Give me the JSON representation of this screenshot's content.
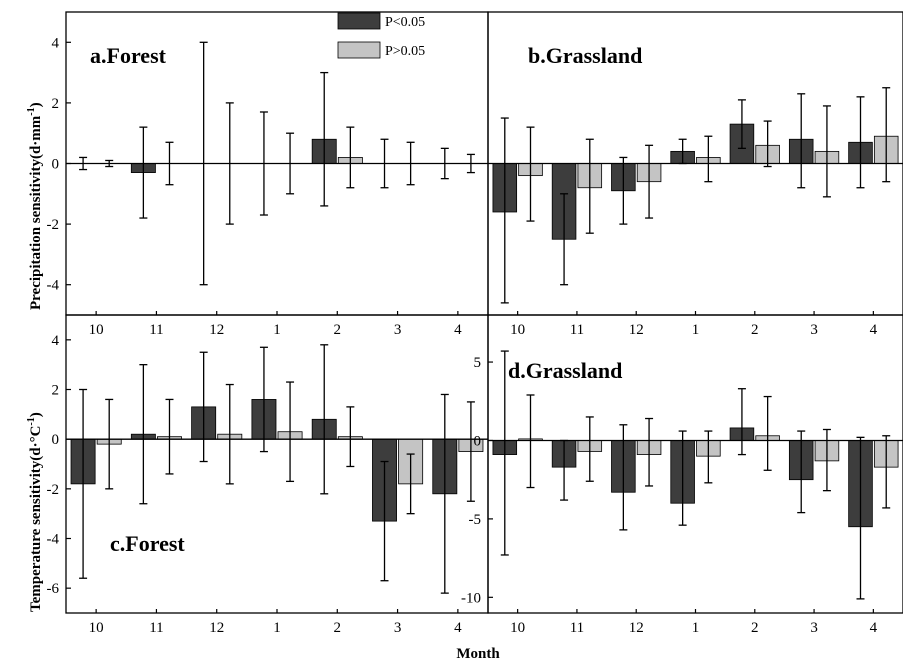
{
  "colors": {
    "sig": "#3d3d3d",
    "nonsig": "#c4c4c4",
    "axis": "#000000"
  },
  "labels": {
    "ylabel_top": "Precipitation sensitivity(d·mm",
    "ylabel_top_sup": "-1",
    "ylabel_top_end": ")",
    "ylabel_bottom": "Temperature sensitivity(d·°C",
    "ylabel_bottom_sup": "-1",
    "ylabel_bottom_end": ")",
    "xlabel": "Month"
  },
  "legend": {
    "sig": "P<0.05",
    "nonsig": "P>0.05"
  },
  "chart_data": [
    {
      "type": "bar",
      "panel": "a",
      "title": "a.Forest",
      "categories": [
        "10",
        "11",
        "12",
        "1",
        "2",
        "3",
        "4"
      ],
      "ylim": [
        -5,
        5
      ],
      "yticks": [
        4,
        2,
        0,
        -2,
        -4
      ],
      "series": [
        {
          "name": "P<0.05",
          "values": [
            0,
            -0.3,
            0,
            0,
            0.8,
            0,
            0
          ],
          "err_low": [
            -0.2,
            -1.8,
            -4.0,
            -1.7,
            -1.4,
            -0.8,
            -0.5
          ],
          "err_high": [
            0.2,
            1.2,
            4.0,
            1.7,
            3.0,
            0.8,
            0.5
          ]
        },
        {
          "name": "P>0.05",
          "values": [
            0,
            0,
            0,
            0,
            0.2,
            0,
            0
          ],
          "err_low": [
            -0.1,
            -0.7,
            -2.0,
            -1.0,
            -0.8,
            -0.7,
            -0.3
          ],
          "err_high": [
            0.1,
            0.7,
            2.0,
            1.0,
            1.2,
            0.7,
            0.3
          ]
        }
      ]
    },
    {
      "type": "bar",
      "panel": "b",
      "title": "b.Grassland",
      "categories": [
        "10",
        "11",
        "12",
        "1",
        "2",
        "3",
        "4"
      ],
      "ylim": [
        -5,
        5
      ],
      "yticks": [],
      "series": [
        {
          "name": "P<0.05",
          "values": [
            -1.6,
            -2.5,
            -0.9,
            0.4,
            1.3,
            0.8,
            0.7
          ],
          "err_low": [
            -4.6,
            -4.0,
            -2.0,
            0.0,
            0.5,
            -0.8,
            -0.8
          ],
          "err_high": [
            1.5,
            -1.0,
            0.2,
            0.8,
            2.1,
            2.3,
            2.2
          ]
        },
        {
          "name": "P>0.05",
          "values": [
            -0.4,
            -0.8,
            -0.6,
            0.2,
            0.6,
            0.4,
            0.9
          ],
          "err_low": [
            -1.9,
            -2.3,
            -1.8,
            -0.6,
            -0.1,
            -1.1,
            -0.6
          ],
          "err_high": [
            1.2,
            0.8,
            0.6,
            0.9,
            1.4,
            1.9,
            2.5
          ]
        }
      ]
    },
    {
      "type": "bar",
      "panel": "c",
      "title": "c.Forest",
      "categories": [
        "10",
        "11",
        "12",
        "1",
        "2",
        "3",
        "4"
      ],
      "ylim": [
        -7,
        5
      ],
      "yticks": [
        4,
        2,
        0,
        -2,
        -4,
        -6
      ],
      "series": [
        {
          "name": "P<0.05",
          "values": [
            -1.8,
            0.2,
            1.3,
            1.6,
            0.8,
            -3.3,
            -2.2
          ],
          "err_low": [
            -5.6,
            -2.6,
            -0.9,
            -0.5,
            -2.2,
            -5.7,
            -6.2
          ],
          "err_high": [
            2.0,
            3.0,
            3.5,
            3.7,
            3.8,
            -0.9,
            1.8
          ]
        },
        {
          "name": "P>0.05",
          "values": [
            -0.2,
            0.1,
            0.2,
            0.3,
            0.1,
            -1.8,
            -0.5
          ],
          "err_low": [
            -2.0,
            -1.4,
            -1.8,
            -1.7,
            -1.1,
            -3.0,
            -2.5
          ],
          "err_high": [
            1.6,
            1.6,
            2.2,
            2.3,
            1.3,
            -0.6,
            1.5
          ]
        }
      ]
    },
    {
      "type": "bar",
      "panel": "d",
      "title": "d.Grassland",
      "categories": [
        "10",
        "11",
        "12",
        "1",
        "2",
        "3",
        "4"
      ],
      "ylim": [
        -11,
        8
      ],
      "yticks": [
        5,
        0,
        -5,
        -10
      ],
      "series": [
        {
          "name": "P<0.05",
          "values": [
            -0.9,
            -1.7,
            -3.3,
            -4.0,
            0.8,
            -2.5,
            -5.5
          ],
          "err_low": [
            -7.3,
            -3.8,
            -5.7,
            -5.4,
            -0.9,
            -4.6,
            -10.1
          ],
          "err_high": [
            5.7,
            0.0,
            1.0,
            0.6,
            3.3,
            0.6,
            0.2
          ]
        },
        {
          "name": "P>0.05",
          "values": [
            0.1,
            -0.7,
            -0.9,
            -1.0,
            0.3,
            -1.3,
            -1.7
          ],
          "err_low": [
            -3.0,
            -2.6,
            -2.9,
            -2.7,
            -1.9,
            -3.2,
            -4.3
          ],
          "err_high": [
            2.9,
            1.5,
            1.4,
            0.6,
            2.8,
            0.7,
            0.3
          ]
        }
      ]
    }
  ]
}
